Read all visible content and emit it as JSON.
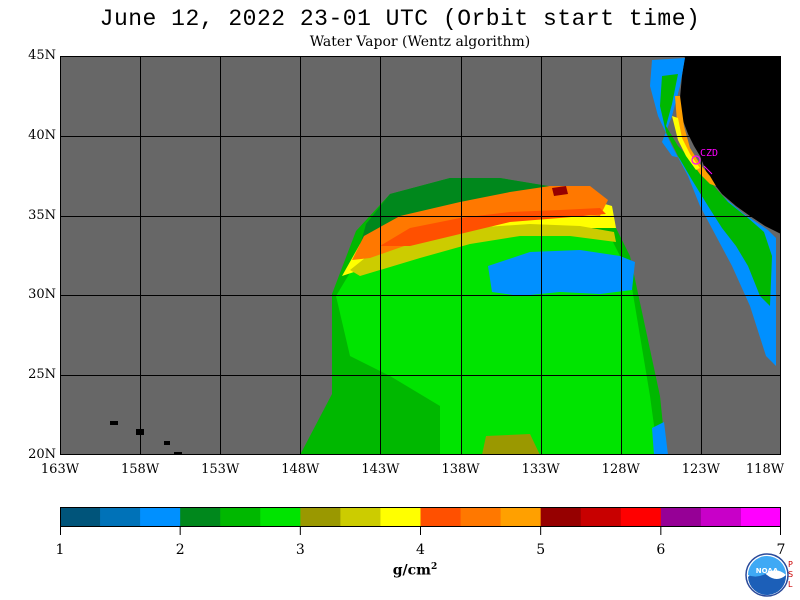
{
  "title": "June 12, 2022  23-01 UTC  (Orbit start time)",
  "subtitle": "Water Vapor (Wentz algorithm)",
  "station_label": "CZD",
  "lat_labels": [
    "45N",
    "40N",
    "35N",
    "30N",
    "25N",
    "20N"
  ],
  "lon_labels": [
    "163W",
    "158W",
    "153W",
    "148W",
    "143W",
    "138W",
    "133W",
    "128W",
    "123W",
    "118W"
  ],
  "colorbar": {
    "tick_labels": [
      "1",
      "2",
      "3",
      "4",
      "5",
      "6",
      "7"
    ],
    "unit": "g/cm",
    "unit_exponent": "2",
    "colors": [
      "#00547a",
      "#0072b8",
      "#0090ff",
      "#00881c",
      "#00b800",
      "#00e400",
      "#9a9800",
      "#cccc00",
      "#ffff00",
      "#ff5000",
      "#ff7800",
      "#ffa000",
      "#960000",
      "#c80000",
      "#ff0000",
      "#960096",
      "#c800c8",
      "#ff00ff"
    ]
  },
  "colors": {
    "background": "#676767",
    "land": "#000000",
    "grid": "#000000",
    "station": "#ff00ff"
  },
  "logo_text": "NOAA",
  "psl_text": "PSL"
}
